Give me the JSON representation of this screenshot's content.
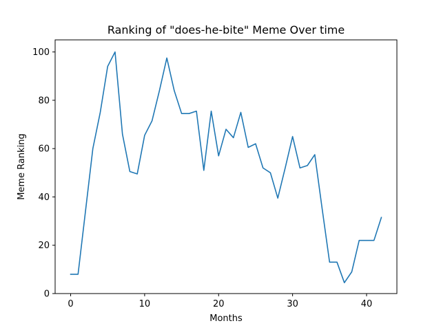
{
  "chart_data": {
    "type": "line",
    "title": "Ranking of \"does-he-bite\" Meme Over time",
    "xlabel": "Months",
    "ylabel": "Meme Ranking",
    "xlim": [
      -2.1,
      44.1
    ],
    "ylim": [
      0,
      105
    ],
    "xticks": [
      0,
      10,
      20,
      30,
      40
    ],
    "yticks": [
      0,
      20,
      40,
      60,
      80,
      100
    ],
    "grid": false,
    "series": [
      {
        "color": "#1f77b4",
        "x": [
          0,
          1,
          2,
          3,
          4,
          5,
          6,
          7,
          8,
          9,
          10,
          11,
          12,
          13,
          14,
          15,
          16,
          17,
          18,
          19,
          20,
          21,
          22,
          23,
          24,
          25,
          26,
          27,
          28,
          29,
          30,
          31,
          32,
          33,
          34,
          35,
          36,
          37,
          38,
          39,
          40,
          41,
          42
        ],
        "values": [
          8,
          8,
          34,
          60,
          75,
          94,
          100,
          66,
          50.5,
          49.5,
          65.5,
          71.5,
          84,
          97.5,
          84,
          74.5,
          74.5,
          75.5,
          51,
          75.5,
          57,
          68,
          64.5,
          75,
          60.5,
          62,
          52,
          50,
          39.5,
          52,
          65,
          52,
          53,
          57.5,
          35,
          13,
          13,
          4.5,
          9,
          22,
          22,
          22,
          31.5
        ]
      }
    ]
  }
}
